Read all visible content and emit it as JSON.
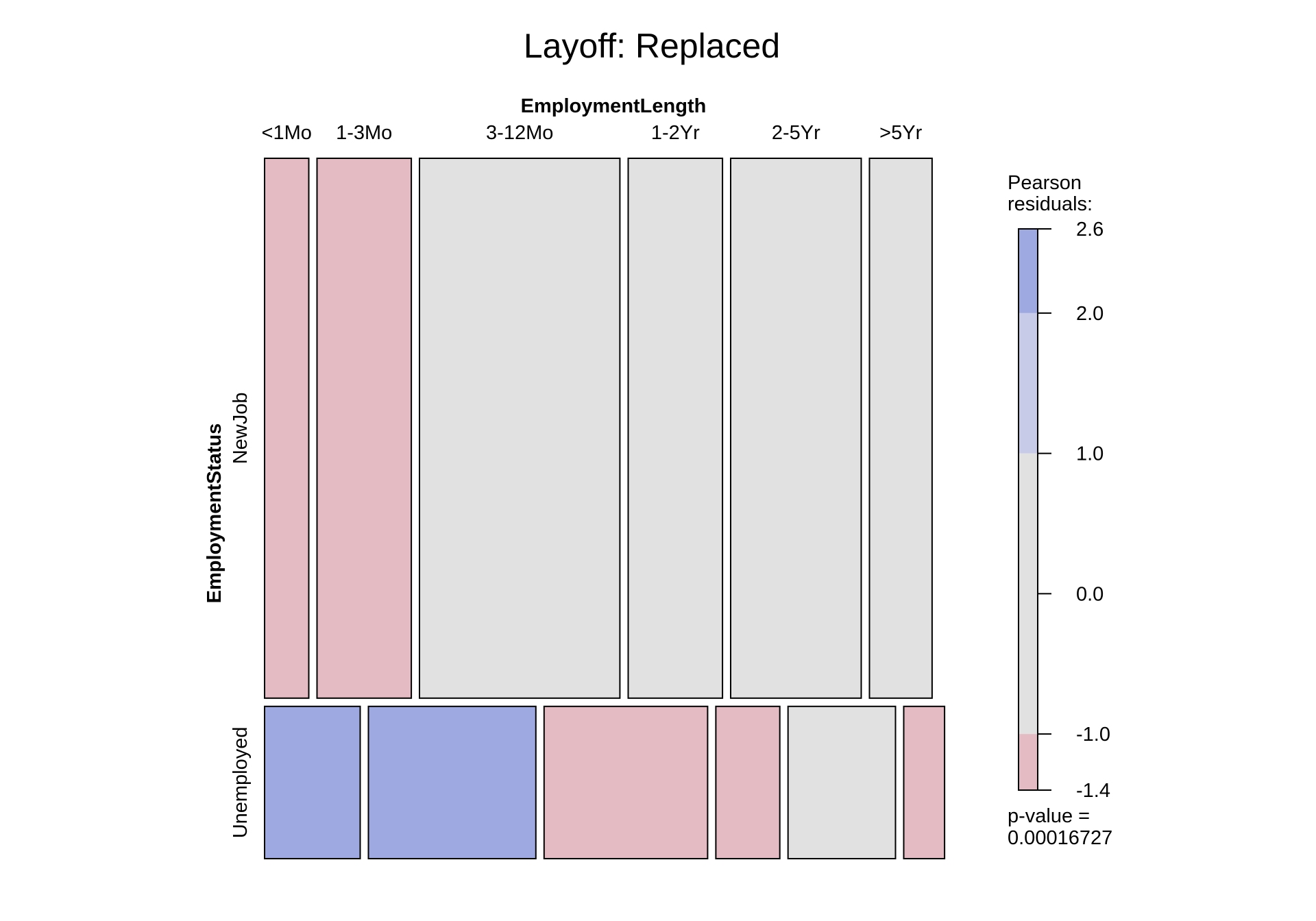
{
  "chart_data": {
    "type": "mosaic",
    "title": "Layoff: Replaced",
    "x_variable": "EmploymentLength",
    "y_variable": "EmploymentStatus",
    "x_levels": [
      "<1Mo",
      "1-3Mo",
      "3-12Mo",
      "1-2Yr",
      "2-5Yr",
      ">5Yr"
    ],
    "y_levels": [
      "NewJob",
      "Unemployed"
    ],
    "row_proportions": [
      0.78,
      0.22
    ],
    "cell_proportions": {
      "NewJob": [
        0.067,
        0.143,
        0.304,
        0.143,
        0.198,
        0.095
      ],
      "Unemployed": [
        0.145,
        0.254,
        0.248,
        0.097,
        0.163,
        0.062
      ]
    },
    "residual_category": {
      "NewJob": [
        "neg",
        "neg",
        "neutral",
        "neutral",
        "neutral",
        "neutral"
      ],
      "Unemployed": [
        "pos_high",
        "pos_high",
        "neg",
        "neg",
        "neutral",
        "neg"
      ]
    },
    "colors": {
      "pos_high": "#9ea9e2",
      "pos_low": "#c7cbe8",
      "neutral": "#e1e1e1",
      "neg": "#e4bbc2"
    },
    "legend": {
      "title_line1": "Pearson",
      "title_line2": "residuals:",
      "min": -1.4,
      "max": 2.6,
      "ticks": [
        {
          "value": 2.6,
          "label": "2.6"
        },
        {
          "value": 2.0,
          "label": "2.0"
        },
        {
          "value": 1.0,
          "label": "1.0"
        },
        {
          "value": 0.0,
          "label": "0.0"
        },
        {
          "value": -1.0,
          "label": "-1.0"
        },
        {
          "value": -1.4,
          "label": "-1.4"
        }
      ],
      "bands": [
        {
          "from": 2.0,
          "to": 2.6,
          "color": "pos_high"
        },
        {
          "from": 1.0,
          "to": 2.0,
          "color": "pos_low"
        },
        {
          "from": -1.0,
          "to": 1.0,
          "color": "neutral"
        },
        {
          "from": -1.4,
          "to": -1.0,
          "color": "neg"
        }
      ],
      "pvalue_line1": "p-value =",
      "pvalue_line2": "0.00016727"
    }
  }
}
